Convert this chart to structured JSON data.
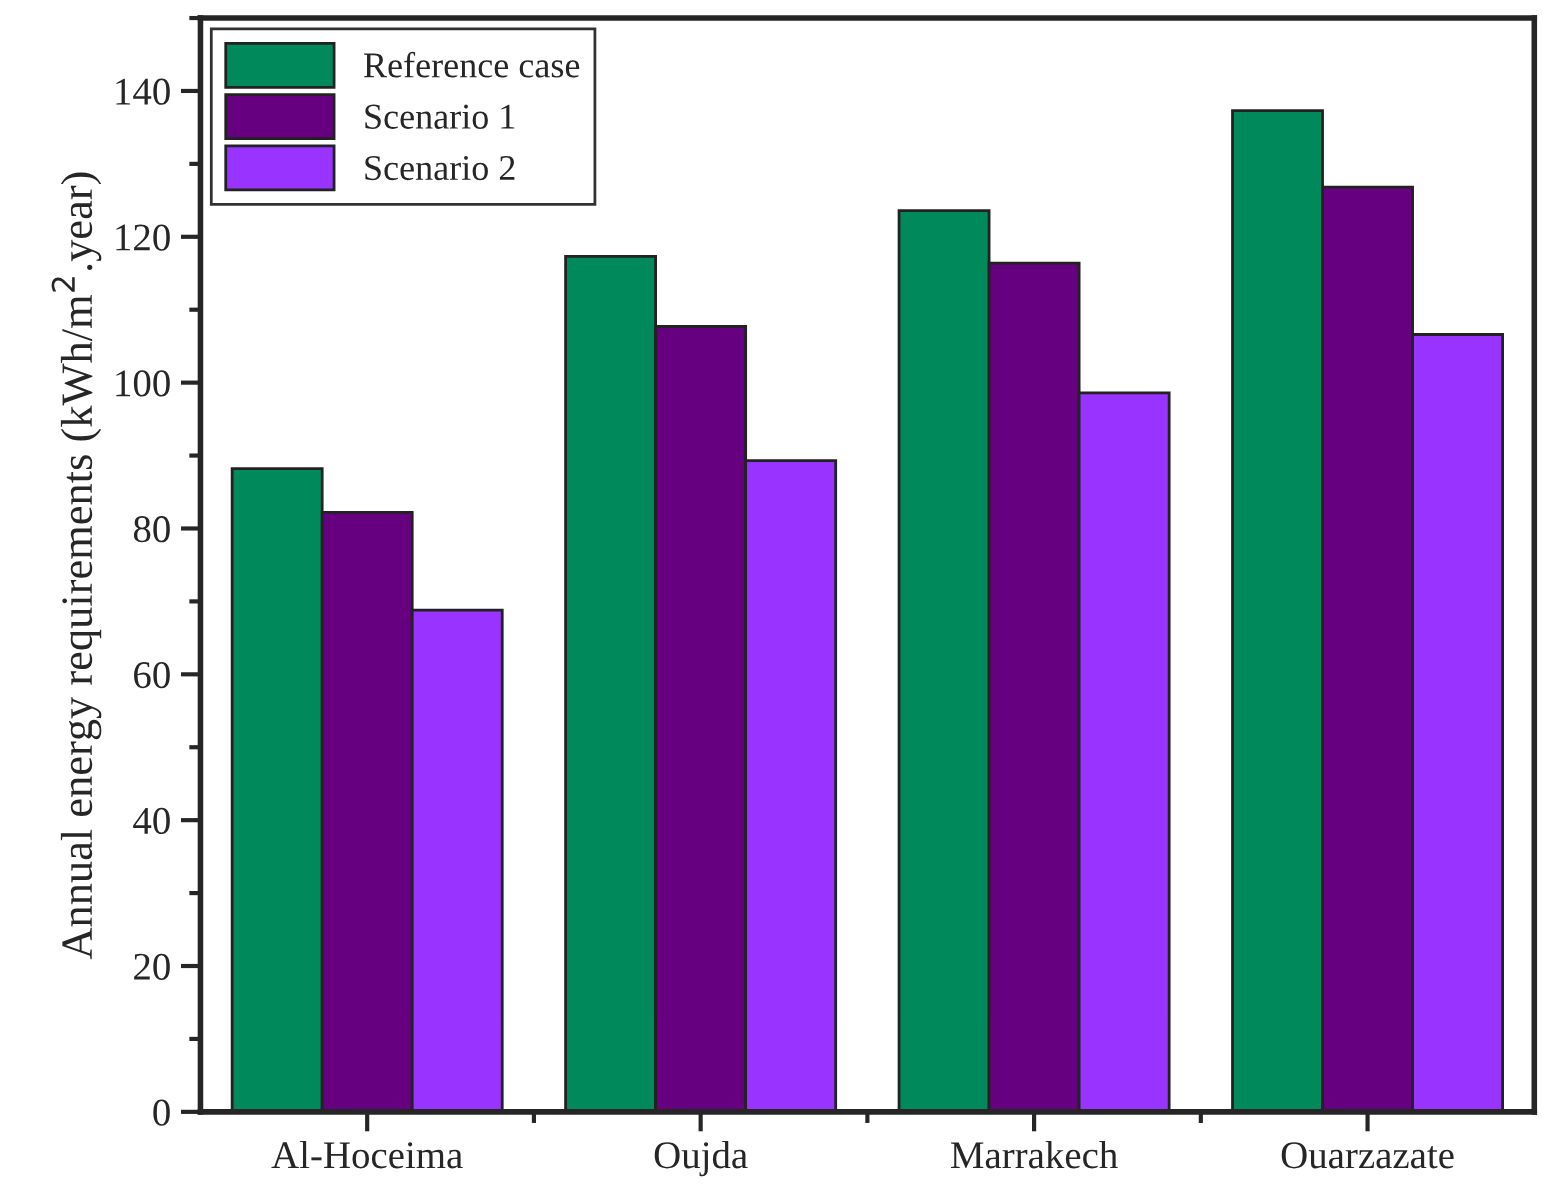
{
  "chart_data": {
    "type": "bar",
    "ylabel": "Annual energy requirements (kWh/m$^{2}$.year)",
    "categories": [
      "Al-Hoceima",
      "Oujda",
      "Marrakech",
      "Ouarzazate"
    ],
    "series": [
      {
        "name": "Reference case",
        "color": "#00895a",
        "values": [
          88.2,
          117.3,
          123.6,
          137.3
        ]
      },
      {
        "name": "Scenario 1",
        "color": "#660080",
        "values": [
          82.2,
          107.7,
          116.4,
          126.8
        ]
      },
      {
        "name": "Scenario 2",
        "color": "#9933ff",
        "values": [
          68.8,
          89.3,
          98.6,
          106.6
        ]
      }
    ],
    "ylim": [
      0,
      150
    ],
    "yticks": [
      0,
      20,
      40,
      60,
      80,
      100,
      120,
      140
    ],
    "grid": false,
    "legend": "top left"
  }
}
